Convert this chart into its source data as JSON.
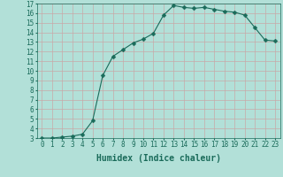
{
  "x": [
    0,
    1,
    2,
    3,
    4,
    5,
    6,
    7,
    8,
    9,
    10,
    11,
    12,
    13,
    14,
    15,
    16,
    17,
    18,
    19,
    20,
    21,
    22,
    23
  ],
  "y": [
    3.0,
    3.0,
    3.1,
    3.2,
    3.4,
    4.8,
    9.5,
    11.5,
    12.2,
    12.9,
    13.3,
    13.9,
    15.8,
    16.8,
    16.6,
    16.5,
    16.6,
    16.4,
    16.2,
    16.1,
    15.8,
    14.5,
    13.2,
    13.1
  ],
  "line_color": "#1a6b5a",
  "bg_color": "#b2e0d8",
  "grid_color": "#d0ede8",
  "xlabel": "Humidex (Indice chaleur)",
  "xlim": [
    -0.5,
    23.5
  ],
  "ylim": [
    3,
    17
  ],
  "yticks": [
    3,
    4,
    5,
    6,
    7,
    8,
    9,
    10,
    11,
    12,
    13,
    14,
    15,
    16,
    17
  ],
  "xticks": [
    0,
    1,
    2,
    3,
    4,
    5,
    6,
    7,
    8,
    9,
    10,
    11,
    12,
    13,
    14,
    15,
    16,
    17,
    18,
    19,
    20,
    21,
    22,
    23
  ],
  "fontsize_label": 7,
  "fontsize_tick": 5.5,
  "marker_size": 2.5,
  "linewidth": 0.8
}
